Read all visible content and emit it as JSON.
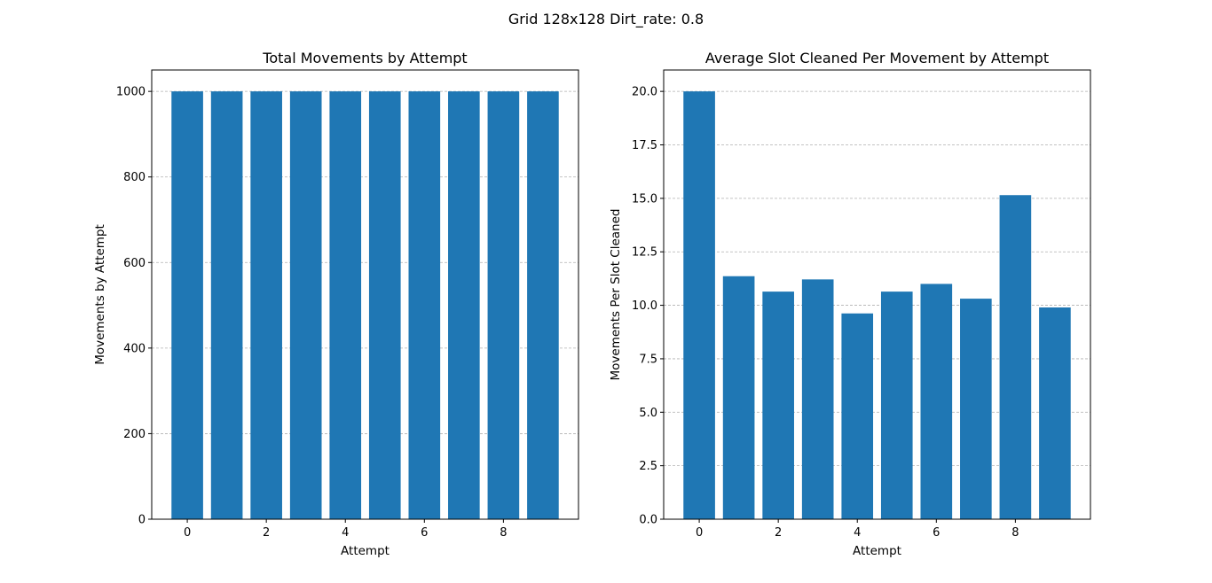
{
  "figure": {
    "suptitle": "Grid 128x128 Dirt_rate: 0.8",
    "bar_color": "#1f77b4",
    "grid_color": "#b0b0b0"
  },
  "chart_data": [
    {
      "type": "bar",
      "title": "Total Movements by Attempt",
      "xlabel": "Attempt",
      "ylabel": "Movements by Attempt",
      "categories": [
        0,
        1,
        2,
        3,
        4,
        5,
        6,
        7,
        8,
        9
      ],
      "values": [
        1000,
        1000,
        1000,
        1000,
        1000,
        1000,
        1000,
        1000,
        1000,
        1000
      ],
      "xlim": [
        -0.9,
        9.9
      ],
      "ylim": [
        0,
        1050
      ],
      "xticks": [
        0,
        2,
        4,
        6,
        8
      ],
      "yticks": [
        0,
        200,
        400,
        600,
        800,
        1000
      ],
      "ytick_labels": [
        "0",
        "200",
        "400",
        "600",
        "800",
        "1000"
      ],
      "grid": "y-dashed"
    },
    {
      "type": "bar",
      "title": "Average Slot Cleaned Per Movement by Attempt",
      "xlabel": "Attempt",
      "ylabel": "Movements Per Slot Cleaned",
      "categories": [
        0,
        1,
        2,
        3,
        4,
        5,
        6,
        7,
        8,
        9
      ],
      "values": [
        20.0,
        11.36,
        10.64,
        11.21,
        9.62,
        10.64,
        11.0,
        10.31,
        15.15,
        9.9
      ],
      "xlim": [
        -0.9,
        9.9
      ],
      "ylim": [
        0,
        21
      ],
      "xticks": [
        0,
        2,
        4,
        6,
        8
      ],
      "yticks": [
        0,
        2.5,
        5,
        7.5,
        10,
        12.5,
        15,
        17.5,
        20
      ],
      "ytick_labels": [
        "0.0",
        "2.5",
        "5.0",
        "7.5",
        "10.0",
        "12.5",
        "15.0",
        "17.5",
        "20.0"
      ],
      "grid": "y-dashed"
    }
  ]
}
